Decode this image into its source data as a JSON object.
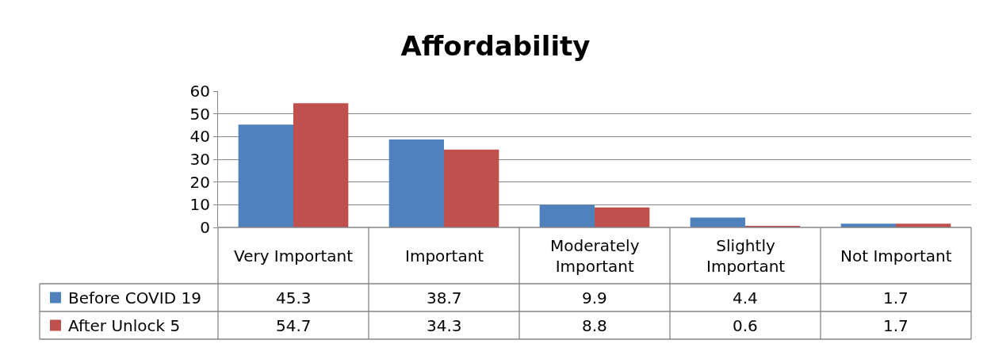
{
  "chart_data": {
    "type": "bar",
    "title": "Affordability",
    "categories": [
      "Very Important",
      "Important",
      "Moderately Important",
      "Slightly Important",
      "Not Important"
    ],
    "series": [
      {
        "name": "Before COVID 19",
        "color": "#4f81bd",
        "values": [
          45.3,
          38.7,
          9.9,
          4.4,
          1.7
        ]
      },
      {
        "name": "After Unlock 5",
        "color": "#c0504d",
        "values": [
          54.7,
          34.3,
          8.8,
          0.6,
          1.7
        ]
      }
    ],
    "ylim": [
      0,
      60
    ],
    "yticks": [
      0,
      10,
      20,
      30,
      40,
      50,
      60
    ],
    "grid": "y",
    "legend": "bottom left",
    "data_labels": true
  }
}
